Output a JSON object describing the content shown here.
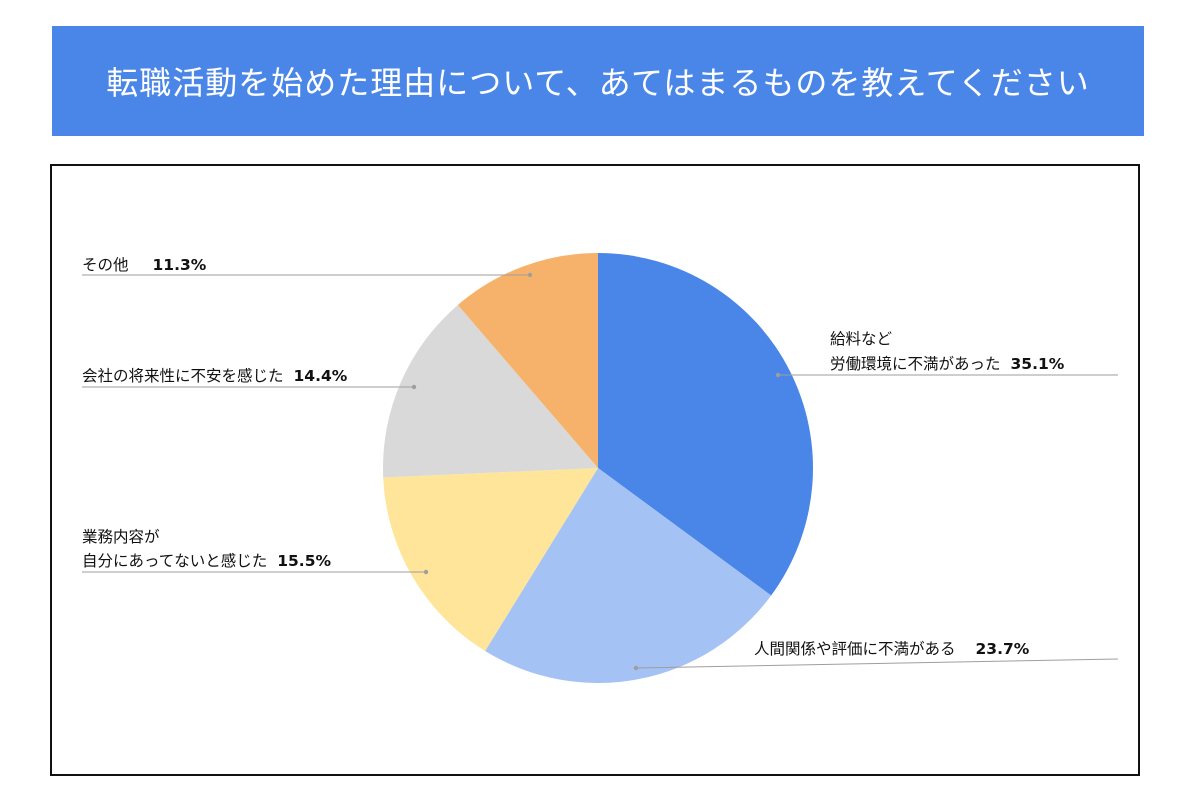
{
  "header": {
    "title": "転職活動を始めた理由について、あてはまるものを教えてください"
  },
  "chart_data": {
    "type": "pie",
    "title": "転職活動を始めた理由について、あてはまるものを教えてください",
    "start_angle_deg": 0,
    "direction": "clockwise",
    "slices": [
      {
        "key": "salary",
        "label_lines": [
          "給料など",
          "労働環境に不満があった"
        ],
        "value_text": "35.1%",
        "value": 35.1,
        "color": "#4a86e8"
      },
      {
        "key": "relations",
        "label_lines": [
          "人間関係や評価に不満がある"
        ],
        "value_text": "23.7%",
        "value": 23.7,
        "color": "#a4c2f4"
      },
      {
        "key": "work",
        "label_lines": [
          "業務内容が",
          "自分にあってないと感じた"
        ],
        "value_text": "15.5%",
        "value": 15.5,
        "color": "#ffe599"
      },
      {
        "key": "future",
        "label_lines": [
          "会社の将来性に不安を感じた"
        ],
        "value_text": "14.4%",
        "value": 14.4,
        "color": "#d9d9d9"
      },
      {
        "key": "other",
        "label_lines": [
          "その他"
        ],
        "value_text": "11.3%",
        "value": 11.3,
        "color": "#f6b26b"
      }
    ]
  }
}
